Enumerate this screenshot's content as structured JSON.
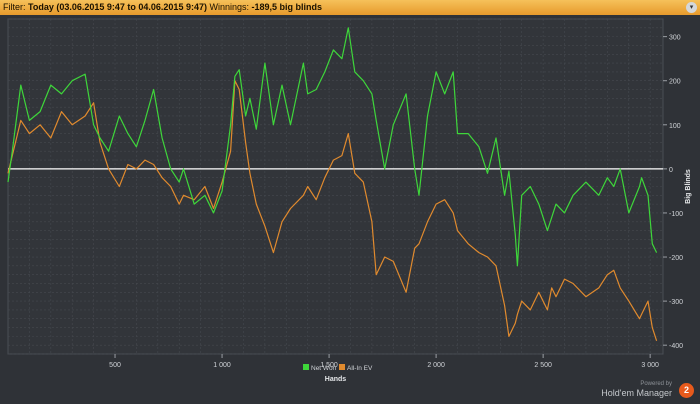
{
  "filter": {
    "label": "Filter:",
    "value": "Today (03.06.2015 9:47 to 04.06.2015 9:47)",
    "winnings_label": "Winnings:",
    "winnings_value": "-189,5 big blinds"
  },
  "chart_data": {
    "type": "line",
    "xlabel": "Hands",
    "ylabel": "Big Blinds",
    "xlim": [
      0,
      3060
    ],
    "ylim": [
      -420,
      340
    ],
    "xticks": [
      500,
      1000,
      1500,
      2000,
      2500,
      3000
    ],
    "xtick_labels": [
      "500",
      "1 000",
      "1 500",
      "2 000",
      "2 500",
      "3 000"
    ],
    "yticks": [
      300,
      200,
      100,
      0,
      -100,
      -200,
      -300,
      -400
    ],
    "ytick_labels": [
      "300",
      "200",
      "100",
      "0",
      "-100",
      "-200",
      "-300",
      "-400"
    ],
    "grid": true,
    "legend_position": "bottom-center",
    "series": [
      {
        "name": "Net Won",
        "color": "#3ed63a",
        "x": [
          0,
          20,
          60,
          100,
          150,
          200,
          250,
          300,
          360,
          400,
          430,
          470,
          520,
          560,
          600,
          640,
          680,
          720,
          760,
          800,
          820,
          870,
          920,
          960,
          1000,
          1040,
          1060,
          1080,
          1110,
          1130,
          1160,
          1200,
          1240,
          1280,
          1320,
          1380,
          1400,
          1440,
          1480,
          1520,
          1560,
          1590,
          1620,
          1660,
          1700,
          1720,
          1760,
          1800,
          1860,
          1900,
          1920,
          1960,
          2000,
          2040,
          2080,
          2100,
          2150,
          2200,
          2240,
          2280,
          2320,
          2340,
          2370,
          2380,
          2400,
          2440,
          2480,
          2520,
          2540,
          2560,
          2600,
          2640,
          2700,
          2760,
          2800,
          2830,
          2860,
          2900,
          2950,
          2960,
          2990,
          3010,
          3030
        ],
        "y": [
          -30,
          40,
          190,
          110,
          130,
          190,
          170,
          200,
          215,
          100,
          70,
          40,
          120,
          80,
          50,
          110,
          180,
          70,
          0,
          -30,
          0,
          -80,
          -60,
          -100,
          -50,
          100,
          210,
          225,
          120,
          160,
          90,
          240,
          100,
          190,
          100,
          240,
          170,
          180,
          220,
          270,
          250,
          320,
          220,
          200,
          170,
          110,
          0,
          100,
          170,
          0,
          -60,
          120,
          220,
          170,
          220,
          80,
          80,
          50,
          -10,
          70,
          -60,
          -5,
          -150,
          -220,
          -60,
          -40,
          -80,
          -140,
          -110,
          -80,
          -100,
          -60,
          -30,
          -60,
          -20,
          -40,
          0,
          -100,
          -40,
          -20,
          -60,
          -170,
          -190
        ]
      },
      {
        "name": "All-In EV",
        "color": "#e08a2e",
        "x": [
          0,
          20,
          60,
          100,
          150,
          200,
          250,
          300,
          360,
          400,
          430,
          470,
          520,
          560,
          600,
          640,
          680,
          720,
          760,
          800,
          820,
          870,
          920,
          960,
          1000,
          1040,
          1060,
          1080,
          1110,
          1130,
          1160,
          1200,
          1240,
          1280,
          1320,
          1380,
          1400,
          1440,
          1480,
          1520,
          1560,
          1590,
          1620,
          1660,
          1700,
          1720,
          1760,
          1800,
          1860,
          1900,
          1920,
          1960,
          2000,
          2040,
          2080,
          2100,
          2150,
          2200,
          2240,
          2280,
          2320,
          2340,
          2370,
          2380,
          2400,
          2440,
          2480,
          2520,
          2540,
          2560,
          2600,
          2640,
          2700,
          2760,
          2800,
          2830,
          2860,
          2900,
          2950,
          2960,
          2990,
          3010,
          3030
        ],
        "y": [
          -10,
          30,
          110,
          80,
          100,
          70,
          130,
          100,
          120,
          150,
          60,
          0,
          -40,
          10,
          0,
          20,
          10,
          -20,
          -40,
          -80,
          -60,
          -70,
          -40,
          -90,
          -30,
          40,
          200,
          180,
          60,
          -10,
          -80,
          -130,
          -190,
          -120,
          -90,
          -60,
          -40,
          -70,
          -20,
          20,
          30,
          80,
          -10,
          -30,
          -120,
          -240,
          -200,
          -210,
          -280,
          -180,
          -170,
          -120,
          -80,
          -70,
          -100,
          -140,
          -170,
          -190,
          -200,
          -220,
          -310,
          -380,
          -350,
          -330,
          -300,
          -320,
          -280,
          -320,
          -270,
          -290,
          -250,
          -260,
          -290,
          -270,
          -240,
          -230,
          -270,
          -300,
          -340,
          -330,
          -300,
          -360,
          -390
        ]
      }
    ]
  },
  "legend": [
    {
      "label": "Net Won",
      "color": "#3ed63a"
    },
    {
      "label": "All-In EV",
      "color": "#e08a2e"
    }
  ],
  "footer": {
    "powered_by": "Powered by",
    "brand": "Hold'em Manager",
    "logo_text": "2"
  }
}
